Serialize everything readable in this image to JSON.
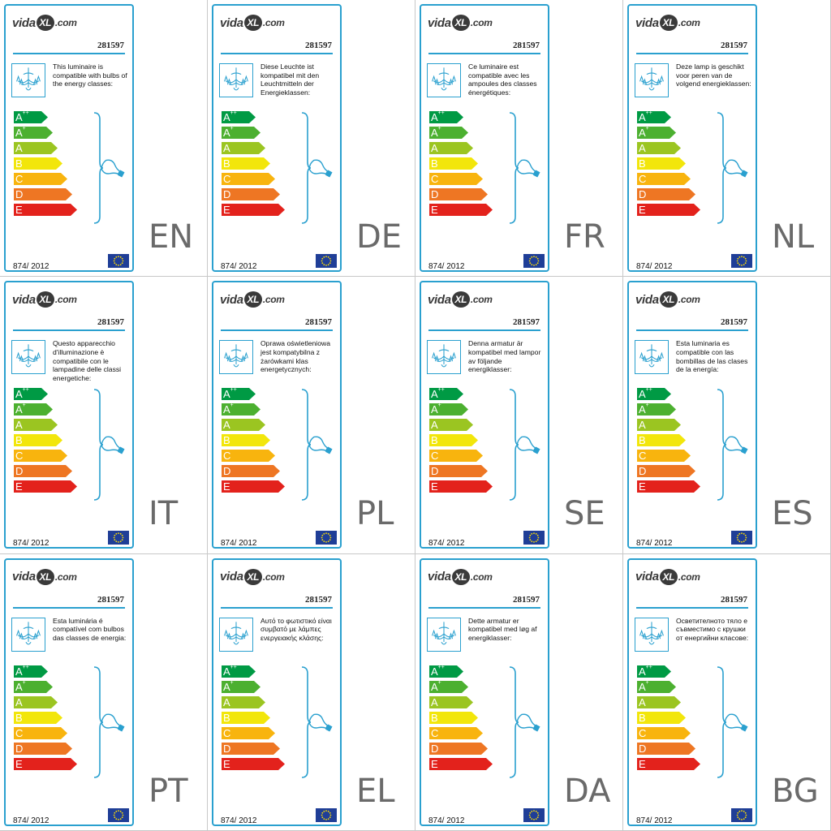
{
  "brand": {
    "logo_prefix": "vida",
    "logo_mark": "XL",
    "logo_suffix": ".com"
  },
  "model_number": "281597",
  "regulation": "874/ 2012",
  "colors": {
    "frame": "#2aa0cf",
    "eu_flag": "#1f3e97",
    "eu_star": "#ffdd00",
    "lang_text": "#6a6a6a"
  },
  "energy_classes": [
    {
      "name": "A",
      "sup": "++",
      "color": "#009a44"
    },
    {
      "name": "A",
      "sup": "+",
      "color": "#4cb030"
    },
    {
      "name": "A",
      "sup": "",
      "color": "#9bc521"
    },
    {
      "name": "B",
      "sup": "",
      "color": "#f2e60b"
    },
    {
      "name": "C",
      "sup": "",
      "color": "#f8b40e"
    },
    {
      "name": "D",
      "sup": "",
      "color": "#ee7623"
    },
    {
      "name": "E",
      "sup": "",
      "color": "#e3221c"
    }
  ],
  "icons": {
    "luminaire": "chandelier-icon",
    "bulb": "bulb-icon",
    "flag": "eu-flag-icon"
  },
  "labels": [
    {
      "lang": "EN",
      "text": "This luminaire is compatible with bulbs of the energy classes:"
    },
    {
      "lang": "DE",
      "text": "Diese Leuchte ist kompatibel mit den Leuchtmitteln der Energieklassen:"
    },
    {
      "lang": "FR",
      "text": "Ce luminaire est compatible avec les ampoules des classes énergétiques:"
    },
    {
      "lang": "NL",
      "text": "Deze lamp is geschikt voor peren van de volgend energieklassen:"
    },
    {
      "lang": "IT",
      "text": "Questo apparecchio d'illuminazione è compatibile con le lampadine delle classi energetiche:"
    },
    {
      "lang": "PL",
      "text": "Oprawa oświetleniowa jest kompatybilna z żarówkami klas energetycznych:"
    },
    {
      "lang": "SE",
      "text": "Denna armatur är kompatibel med lampor av följande energiklasser:"
    },
    {
      "lang": "ES",
      "text": "Esta luminaria es compatible con las bombillas de las clases de la energía:"
    },
    {
      "lang": "PT",
      "text": "Esta luminária é compatível com bulbos das classes de energia:"
    },
    {
      "lang": "EL",
      "text": "Αυτό το φωτιστικό είναι συμβατό με λάμπες ενεργειακής κλάσης:"
    },
    {
      "lang": "DA",
      "text": "Dette armatur er kompatibel med løg af energiklasser:"
    },
    {
      "lang": "BG",
      "text": "Осветителното тяло е съвместимо с крушки от енергийни класове:"
    }
  ]
}
